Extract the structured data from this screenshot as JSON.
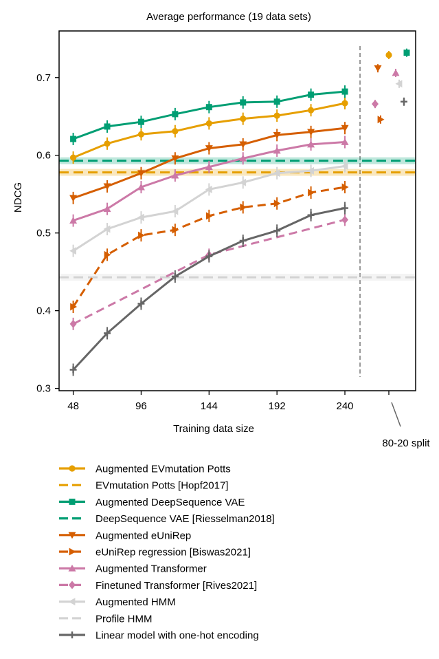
{
  "chart_data": {
    "type": "line",
    "title": "Average performance (19 data sets)",
    "xlabel": "Training data size",
    "ylabel": "NDCG",
    "xticks": [
      48,
      96,
      144,
      192,
      240
    ],
    "yticks": [
      0.3,
      0.4,
      0.5,
      0.6,
      0.7
    ],
    "xlim": [
      38,
      290
    ],
    "ylim": [
      0.297,
      0.76
    ],
    "grid": false,
    "legend_position": "below",
    "split_label": "80-20 split",
    "x": [
      48,
      72,
      96,
      120,
      144,
      168,
      192,
      216,
      240
    ],
    "series": [
      {
        "name": "Augmented EVmutation Potts",
        "kind": "line",
        "color": "#e69f00",
        "marker": "circle",
        "values": [
          0.597,
          0.615,
          0.627,
          0.631,
          0.641,
          0.647,
          0.651,
          0.658,
          0.667
        ],
        "split_value": 0.729
      },
      {
        "name": "EVmutation Potts [Hopf2017]",
        "kind": "baseline",
        "color": "#e69f00",
        "marker": "",
        "value": 0.578
      },
      {
        "name": "Augmented DeepSequence VAE",
        "kind": "line",
        "color": "#009e73",
        "marker": "square",
        "values": [
          0.621,
          0.637,
          0.643,
          0.653,
          0.662,
          0.668,
          0.669,
          0.678,
          0.682
        ],
        "split_value": 0.732
      },
      {
        "name": "DeepSequence VAE [Riesselman2018]",
        "kind": "baseline",
        "color": "#009e73",
        "marker": "",
        "value": 0.593
      },
      {
        "name": "Augmented eUniRep",
        "kind": "line",
        "color": "#d55e00",
        "marker": "triangle-down",
        "values": [
          0.545,
          0.56,
          0.577,
          0.596,
          0.609,
          0.614,
          0.626,
          0.63,
          0.635
        ],
        "split_value": 0.712
      },
      {
        "name": "eUniRep regression [Biswas2021]",
        "kind": "dashed",
        "color": "#d55e00",
        "marker": "triangle-right",
        "values": [
          0.405,
          0.472,
          0.497,
          0.504,
          0.522,
          0.533,
          0.538,
          0.552,
          0.559
        ],
        "split_value": 0.646
      },
      {
        "name": "Augmented Transformer",
        "kind": "line",
        "color": "#cc79a7",
        "marker": "triangle-up",
        "values": [
          0.516,
          0.531,
          0.559,
          0.574,
          0.585,
          0.596,
          0.606,
          0.614,
          0.617
        ],
        "split_value": 0.706
      },
      {
        "name": "Finetuned Transformer [Rives2021]",
        "kind": "dashed-sparse",
        "color": "#cc79a7",
        "marker": "diamond",
        "points": [
          [
            48,
            0.383
          ],
          [
            144,
            0.472
          ],
          [
            240,
            0.517
          ]
        ],
        "split_value": 0.666
      },
      {
        "name": "Augmented HMM",
        "kind": "line",
        "color": "#d3d3d3",
        "marker": "triangle-left",
        "values": [
          0.477,
          0.505,
          0.52,
          0.528,
          0.556,
          0.565,
          0.577,
          0.58,
          0.586
        ],
        "split_value": 0.692
      },
      {
        "name": "Profile HMM",
        "kind": "baseline",
        "color": "#d3d3d3",
        "marker": "",
        "value": 0.443
      },
      {
        "name": "Linear model with one-hot encoding",
        "kind": "line",
        "color": "#666666",
        "marker": "plus",
        "values": [
          0.324,
          0.371,
          0.409,
          0.444,
          0.47,
          0.49,
          0.503,
          0.523,
          0.532
        ],
        "split_value": 0.669
      }
    ]
  }
}
